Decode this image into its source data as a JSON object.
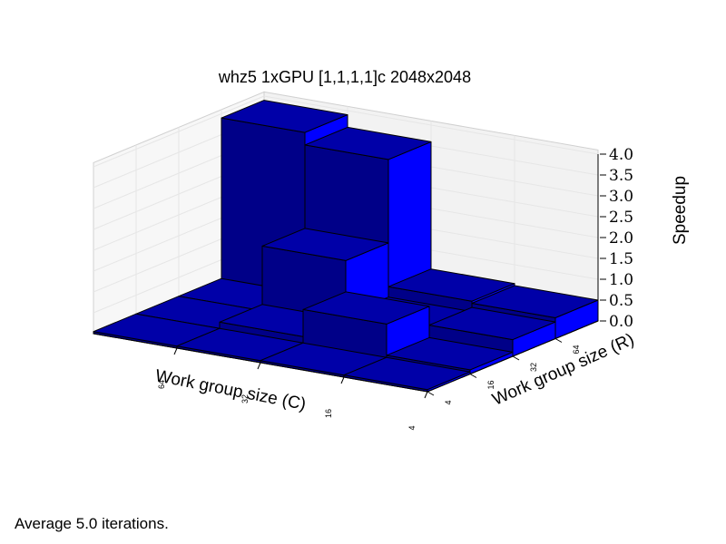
{
  "chart_data": {
    "type": "bar3d",
    "title": "whz5 1xGPU [1,1,1,1]c 2048x2048",
    "xlabel": "Work group size (C)",
    "ylabel": "Work group size (R)",
    "zlabel": "Speedup",
    "x_categories": [
      "64",
      "32",
      "16",
      "4"
    ],
    "y_categories": [
      "4",
      "16",
      "32",
      "64"
    ],
    "zlim": [
      0,
      4
    ],
    "z_ticks": [
      "0.0",
      "0.5",
      "1.0",
      "1.5",
      "2.0",
      "2.5",
      "3.0",
      "3.5",
      "4.0"
    ],
    "grid": true,
    "bars": [
      {
        "x": "64",
        "y": "64",
        "value": 3.9
      },
      {
        "x": "32",
        "y": "64",
        "value": 3.6
      },
      {
        "x": "32",
        "y": "32",
        "value": 1.6
      },
      {
        "x": "16",
        "y": "64",
        "value": 0.55
      },
      {
        "x": "16",
        "y": "16",
        "value": 0.85
      },
      {
        "x": "4",
        "y": "64",
        "value": 0.5
      },
      {
        "x": "32",
        "y": "16",
        "value": 0.2
      },
      {
        "x": "16",
        "y": "32",
        "value": 0.3
      },
      {
        "x": "4",
        "y": "32",
        "value": 0.4
      },
      {
        "x": "4",
        "y": "16",
        "value": 0.1
      },
      {
        "x": "64",
        "y": "32",
        "value": 0.05
      },
      {
        "x": "64",
        "y": "16",
        "value": 0.05
      },
      {
        "x": "64",
        "y": "4",
        "value": 0.05
      },
      {
        "x": "32",
        "y": "4",
        "value": 0.05
      },
      {
        "x": "16",
        "y": "4",
        "value": 0.05
      },
      {
        "x": "4",
        "y": "4",
        "value": 0.05
      }
    ],
    "colors": {
      "top": "#0000a8",
      "front": "#000088",
      "side": "#0000ff"
    }
  },
  "footnote": "Average 5.0 iterations."
}
